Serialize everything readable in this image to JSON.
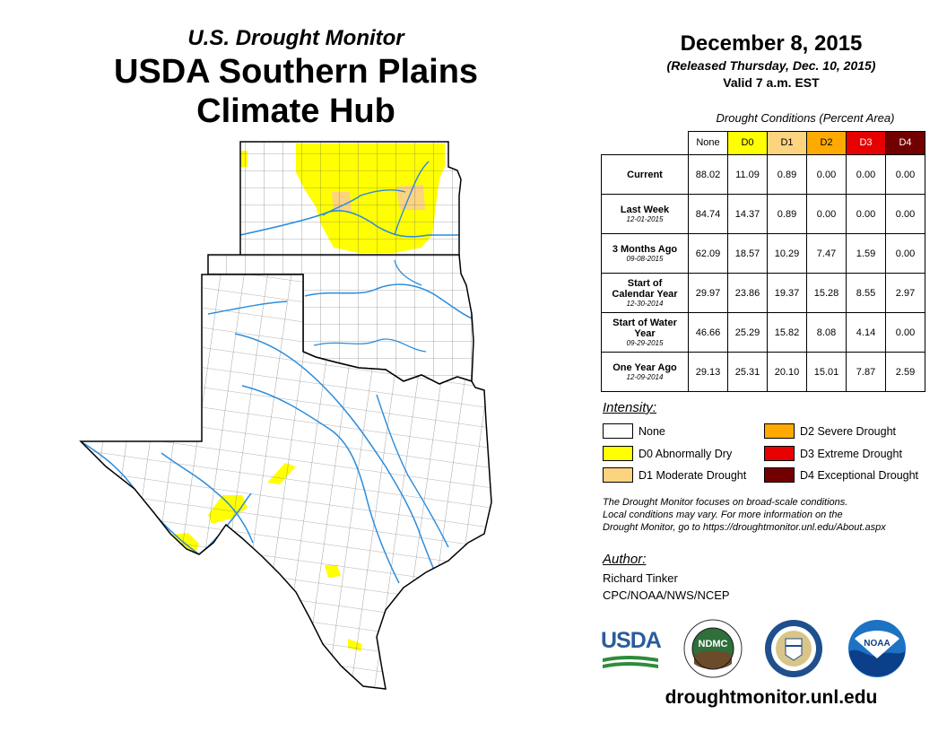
{
  "header": {
    "subtitle": "U.S. Drought Monitor",
    "title_line1": "USDA Southern Plains",
    "title_line2": "Climate Hub"
  },
  "release": {
    "date": "December 8, 2015",
    "released": "(Released Thursday, Dec. 10, 2015)",
    "valid": "Valid 7 a.m. EST"
  },
  "table": {
    "caption": "Drought Conditions (Percent Area)",
    "columns": [
      {
        "label": "None",
        "color": "#ffffff",
        "text_color": "#000000"
      },
      {
        "label": "D0",
        "color": "#ffff00",
        "text_color": "#000000"
      },
      {
        "label": "D1",
        "color": "#fcd37f",
        "text_color": "#000000"
      },
      {
        "label": "D2",
        "color": "#ffaa00",
        "text_color": "#000000"
      },
      {
        "label": "D3",
        "color": "#e60000",
        "text_color": "#ffffff"
      },
      {
        "label": "D4",
        "color": "#730000",
        "text_color": "#ffffff"
      }
    ],
    "rows": [
      {
        "label": "Current",
        "sublabel": "",
        "values": [
          "88.02",
          "11.09",
          "0.89",
          "0.00",
          "0.00",
          "0.00"
        ]
      },
      {
        "label": "Last Week",
        "sublabel": "12-01-2015",
        "values": [
          "84.74",
          "14.37",
          "0.89",
          "0.00",
          "0.00",
          "0.00"
        ]
      },
      {
        "label": "3 Months Ago",
        "sublabel": "09-08-2015",
        "values": [
          "62.09",
          "18.57",
          "10.29",
          "7.47",
          "1.59",
          "0.00"
        ]
      },
      {
        "label": "Start of Calendar Year",
        "sublabel": "12-30-2014",
        "values": [
          "29.97",
          "23.86",
          "19.37",
          "15.28",
          "8.55",
          "2.97"
        ]
      },
      {
        "label": "Start of Water Year",
        "sublabel": "09-29-2015",
        "values": [
          "46.66",
          "25.29",
          "15.82",
          "8.08",
          "4.14",
          "0.00"
        ]
      },
      {
        "label": "One Year Ago",
        "sublabel": "12-09-2014",
        "values": [
          "29.13",
          "25.31",
          "20.10",
          "15.01",
          "7.87",
          "2.59"
        ]
      }
    ]
  },
  "legend": {
    "title": "Intensity:",
    "items": [
      {
        "label": "None",
        "color": "#ffffff"
      },
      {
        "label": "D0 Abnormally Dry",
        "color": "#ffff00"
      },
      {
        "label": "D1 Moderate Drought",
        "color": "#fcd37f"
      },
      {
        "label": "D2 Severe Drought",
        "color": "#ffaa00"
      },
      {
        "label": "D3 Extreme Drought",
        "color": "#e60000"
      },
      {
        "label": "D4 Exceptional Drought",
        "color": "#730000"
      }
    ]
  },
  "note": {
    "line1": "The Drought Monitor focuses on broad-scale conditions.",
    "line2": "Local conditions may vary. For more information on the",
    "line3": "Drought Monitor, go to https://droughtmonitor.unl.edu/About.aspx"
  },
  "author": {
    "label": "Author:",
    "name": "Richard Tinker",
    "org": "CPC/NOAA/NWS/NCEP"
  },
  "logos": {
    "usda": "USDA",
    "ndmc": "NDMC",
    "noaa": "NOAA"
  },
  "footer_url": "droughtmonitor.unl.edu",
  "map": {
    "states": [
      "Kansas",
      "Oklahoma",
      "Texas"
    ],
    "river_color": "#2b8cdc",
    "county_line_color": "#555555"
  }
}
